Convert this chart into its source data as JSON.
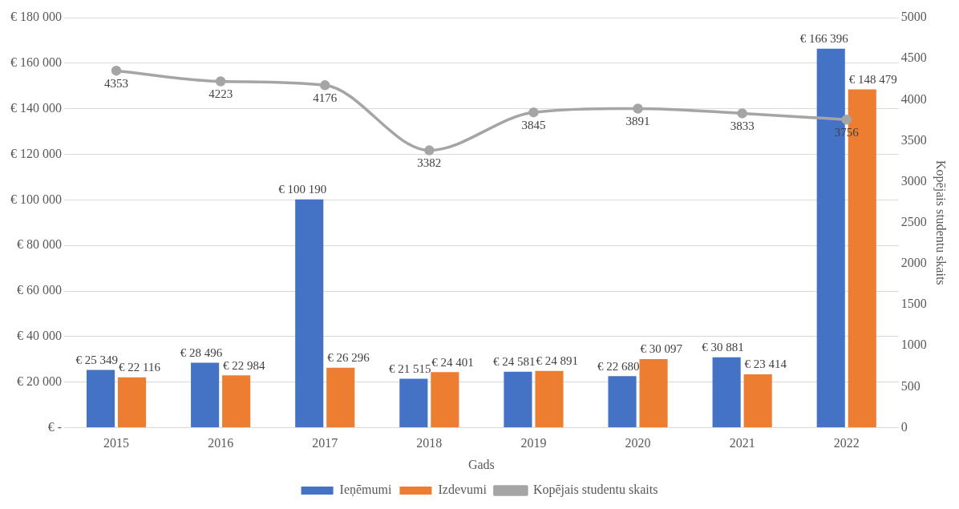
{
  "chart_data": {
    "type": "bar",
    "xlabel": "Gads",
    "y2label": "Kopējais studentu skaits",
    "categories": [
      "2015",
      "2016",
      "2017",
      "2018",
      "2019",
      "2020",
      "2021",
      "2022"
    ],
    "series": [
      {
        "name": "Ieņēmumi",
        "color": "#4472c4",
        "values": [
          25349,
          28496,
          100190,
          21515,
          24581,
          22680,
          30881,
          166396
        ],
        "value_labels": [
          "€ 25 349",
          "€ 28 496",
          "€ 100 190",
          "€ 21 515",
          "€ 24 581",
          "€ 22 680",
          "€ 30 881",
          "€ 166 396"
        ]
      },
      {
        "name": "Izdevumi",
        "color": "#ed7d31",
        "values": [
          22116,
          22984,
          26296,
          24401,
          24891,
          30097,
          23414,
          148479
        ],
        "value_labels": [
          "€ 22 116",
          "€ 22 984",
          "€ 26 296",
          "€ 24 401",
          "€ 24 891",
          "€ 30 097",
          "€ 23 414",
          "€ 148 479"
        ]
      },
      {
        "name": "Kopējais studentu skaits",
        "type": "line",
        "axis": "y2",
        "color": "#a5a5a5",
        "marker": "circle",
        "values": [
          4353,
          4223,
          4176,
          3382,
          3845,
          3891,
          3833,
          3756
        ],
        "value_labels": [
          "4353",
          "4223",
          "4176",
          "3382",
          "3845",
          "3891",
          "3833",
          "3756"
        ]
      }
    ],
    "ylim": [
      0,
      180000
    ],
    "yticks": [
      {
        "value": 0,
        "label": "€ -"
      },
      {
        "value": 20000,
        "label": "€ 20 000"
      },
      {
        "value": 40000,
        "label": "€ 40 000"
      },
      {
        "value": 60000,
        "label": "€ 60 000"
      },
      {
        "value": 80000,
        "label": "€ 80 000"
      },
      {
        "value": 100000,
        "label": "€ 100 000"
      },
      {
        "value": 120000,
        "label": "€ 120 000"
      },
      {
        "value": 140000,
        "label": "€ 140 000"
      },
      {
        "value": 160000,
        "label": "€ 160 000"
      },
      {
        "value": 180000,
        "label": "€ 180 000"
      }
    ],
    "y2lim": [
      0,
      5000
    ],
    "y2ticks": [
      0,
      500,
      1000,
      1500,
      2000,
      2500,
      3000,
      3500,
      4000,
      4500,
      5000
    ],
    "grid": "y",
    "legend": "bottom"
  }
}
